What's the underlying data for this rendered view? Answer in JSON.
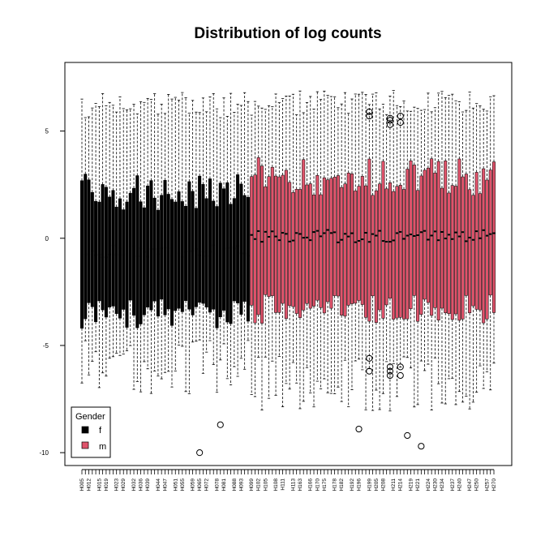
{
  "chart_data": {
    "type": "boxplot",
    "title": "Distribution of log counts",
    "xlabel": "",
    "ylabel": "",
    "ylim": [
      -10.6,
      8.2
    ],
    "yticks": [
      -10,
      -5,
      0,
      5
    ],
    "ytick_labels": [
      "-10",
      "-5",
      "0",
      "5"
    ],
    "n_boxes": 120,
    "n_female": 49,
    "categories": [
      "H005",
      "H012",
      "H015",
      "H019",
      "H023",
      "H029",
      "H032",
      "H036",
      "H039",
      "H044",
      "H047",
      "H051",
      "H055",
      "H059",
      "H065",
      "H072",
      "H078",
      "H081",
      "H088",
      "H093",
      "H099",
      "H102",
      "H105",
      "H108",
      "H111",
      "H113",
      "H163",
      "H166",
      "H170",
      "H175",
      "H178",
      "H182",
      "H192",
      "H196",
      "H199",
      "H205",
      "H208",
      "H211",
      "H214",
      "H219",
      "H221",
      "H224",
      "H230",
      "H234",
      "H237",
      "H240",
      "H247",
      "H250",
      "H257",
      "H270"
    ],
    "female_summary": {
      "q1": -3.5,
      "median": -0.6,
      "q3": 2.2,
      "lower_whisker": -6.0,
      "upper_whisker": 6.2
    },
    "male_summary": {
      "q1": -3.3,
      "median": 0.1,
      "q3": 2.9,
      "lower_whisker": -6.8,
      "upper_whisker": 6.3
    },
    "outliers": [
      {
        "box": 34,
        "y": -10.0
      },
      {
        "box": 40,
        "y": -8.7
      },
      {
        "box": 80,
        "y": -8.9
      },
      {
        "box": 94,
        "y": -9.2
      },
      {
        "box": 98,
        "y": -9.7
      },
      {
        "box": 83,
        "y": 5.7
      },
      {
        "box": 83,
        "y": 5.9
      },
      {
        "box": 83,
        "y": -5.6
      },
      {
        "box": 83,
        "y": -6.2
      },
      {
        "box": 89,
        "y": 5.3
      },
      {
        "box": 89,
        "y": 5.5
      },
      {
        "box": 89,
        "y": 5.6
      },
      {
        "box": 89,
        "y": -6.0
      },
      {
        "box": 89,
        "y": -6.2
      },
      {
        "box": 89,
        "y": -6.4
      },
      {
        "box": 92,
        "y": 5.4
      },
      {
        "box": 92,
        "y": 5.7
      },
      {
        "box": 92,
        "y": -6.0
      },
      {
        "box": 92,
        "y": -6.4
      }
    ],
    "legend": {
      "title": "Gender",
      "entries": [
        {
          "label": "f",
          "color": "#000000"
        },
        {
          "label": "m",
          "color": "#DF536B"
        }
      ],
      "position": "bottom-left"
    },
    "colors": {
      "f": "#000000",
      "m": "#DF536B",
      "whisker": "#000000"
    }
  }
}
